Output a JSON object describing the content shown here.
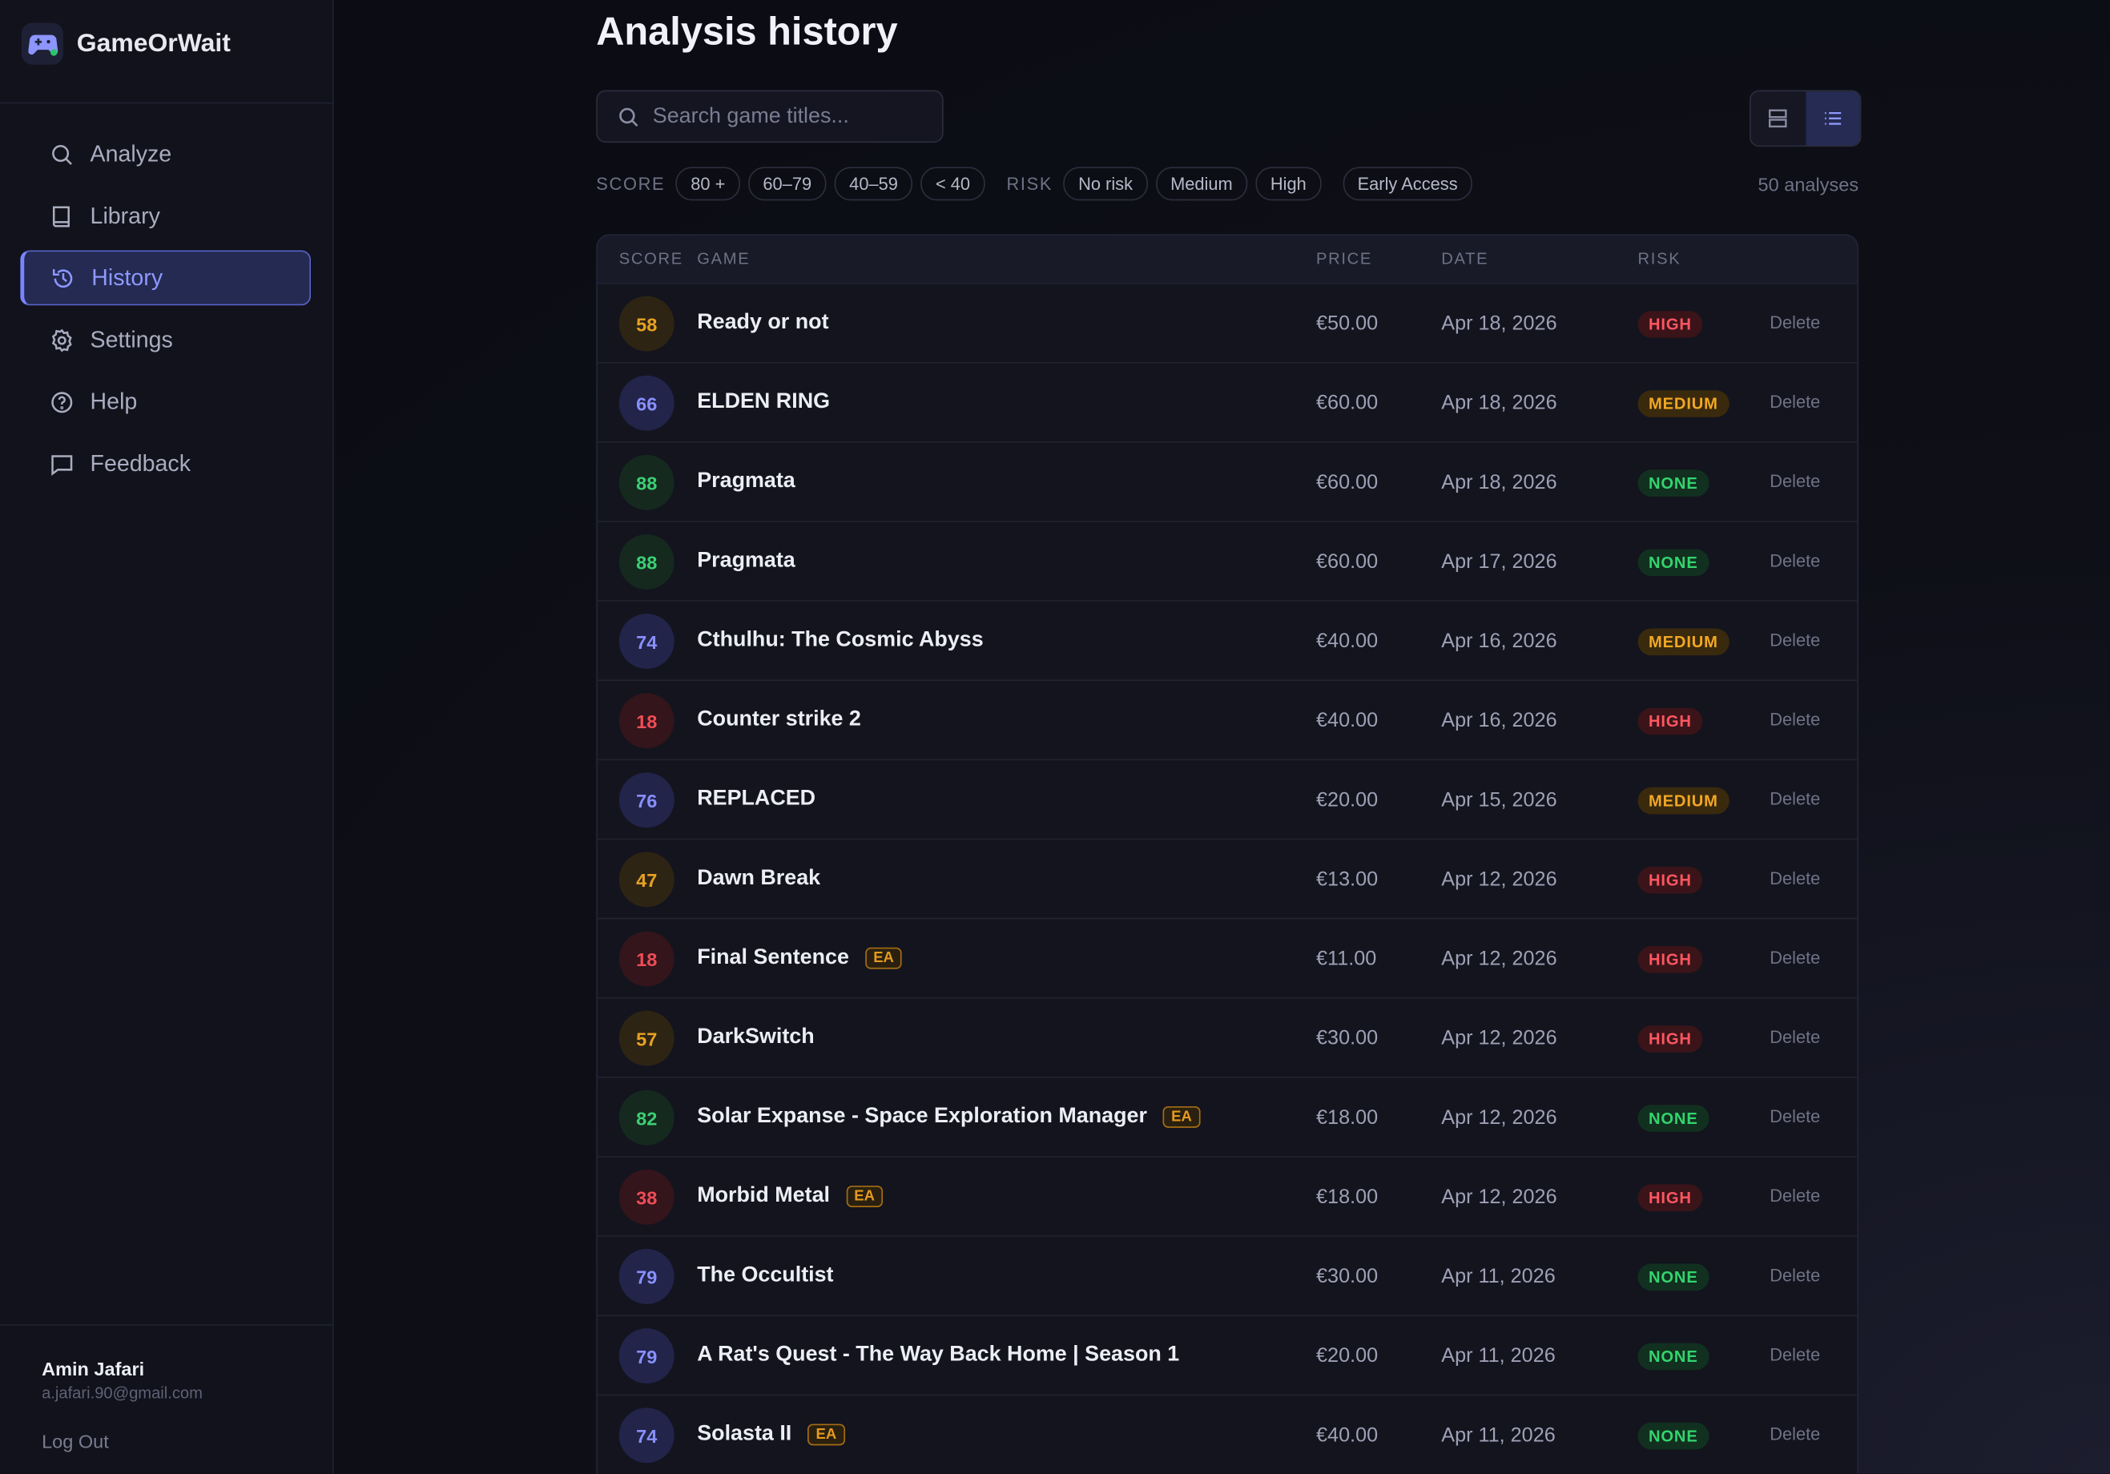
{
  "brand": {
    "name": "GameOrWait"
  },
  "nav": [
    {
      "label": "Analyze"
    },
    {
      "label": "Library"
    },
    {
      "label": "History",
      "active": true
    },
    {
      "label": "Settings"
    },
    {
      "label": "Help"
    },
    {
      "label": "Feedback"
    }
  ],
  "user": {
    "name": "Amin Jafari",
    "email": "a.jafari.90@gmail.com",
    "logout": "Log Out"
  },
  "page": {
    "title": "Analysis history",
    "search_placeholder": "Search game titles...",
    "count": "50 analyses"
  },
  "filters": {
    "score_label": "SCORE",
    "score_chips": [
      "80 +",
      "60–79",
      "40–59",
      "< 40"
    ],
    "risk_label": "RISK",
    "risk_chips": [
      "No risk",
      "Medium",
      "High"
    ],
    "extra_chip": "Early Access"
  },
  "table": {
    "headers": [
      "SCORE",
      "GAME",
      "PRICE",
      "DATE",
      "RISK"
    ],
    "delete_label": "Delete",
    "rows": [
      {
        "score": 58,
        "game": "Ready or not",
        "price": "€50.00",
        "date": "Apr 18, 2026",
        "risk": "HIGH"
      },
      {
        "score": 66,
        "game": "ELDEN RING",
        "price": "€60.00",
        "date": "Apr 18, 2026",
        "risk": "MEDIUM"
      },
      {
        "score": 88,
        "game": "Pragmata",
        "price": "€60.00",
        "date": "Apr 18, 2026",
        "risk": "NONE"
      },
      {
        "score": 88,
        "game": "Pragmata",
        "price": "€60.00",
        "date": "Apr 17, 2026",
        "risk": "NONE"
      },
      {
        "score": 74,
        "game": "Cthulhu: The Cosmic Abyss",
        "price": "€40.00",
        "date": "Apr 16, 2026",
        "risk": "MEDIUM"
      },
      {
        "score": 18,
        "game": "Counter strike 2",
        "price": "€40.00",
        "date": "Apr 16, 2026",
        "risk": "HIGH"
      },
      {
        "score": 76,
        "game": "REPLACED",
        "price": "€20.00",
        "date": "Apr 15, 2026",
        "risk": "MEDIUM"
      },
      {
        "score": 47,
        "game": "Dawn Break",
        "price": "€13.00",
        "date": "Apr 12, 2026",
        "risk": "HIGH"
      },
      {
        "score": 18,
        "game": "Final Sentence",
        "badge": "EA",
        "price": "€11.00",
        "date": "Apr 12, 2026",
        "risk": "HIGH"
      },
      {
        "score": 57,
        "game": "DarkSwitch",
        "price": "€30.00",
        "date": "Apr 12, 2026",
        "risk": "HIGH"
      },
      {
        "score": 82,
        "game": "Solar Expanse - Space Exploration Manager",
        "badge": "EA",
        "price": "€18.00",
        "date": "Apr 12, 2026",
        "risk": "NONE"
      },
      {
        "score": 38,
        "game": "Morbid Metal",
        "badge": "EA",
        "price": "€18.00",
        "date": "Apr 12, 2026",
        "risk": "HIGH"
      },
      {
        "score": 79,
        "game": "The Occultist",
        "price": "€30.00",
        "date": "Apr 11, 2026",
        "risk": "NONE"
      },
      {
        "score": 79,
        "game": "A Rat's Quest - The Way Back Home | Season 1",
        "price": "€20.00",
        "date": "Apr 11, 2026",
        "risk": "NONE"
      },
      {
        "score": 74,
        "game": "Solasta II",
        "badge": "EA",
        "price": "€40.00",
        "date": "Apr 11, 2026",
        "risk": "NONE"
      }
    ]
  }
}
